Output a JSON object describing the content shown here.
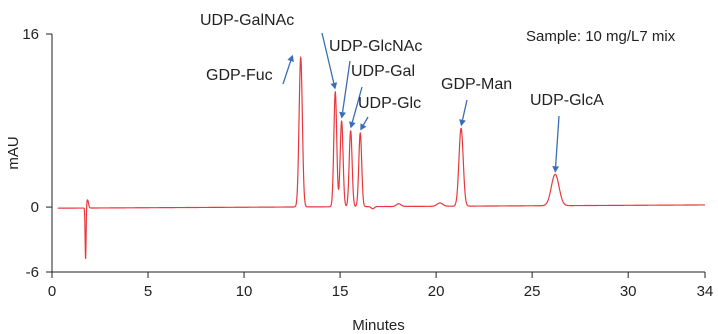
{
  "chart_data": {
    "type": "line",
    "xlabel": "Minutes",
    "ylabel": "mAU",
    "xlim": [
      0,
      34
    ],
    "ylim": [
      -6,
      16
    ],
    "xticks": [
      0,
      5,
      10,
      15,
      20,
      25,
      30,
      34
    ],
    "yticks": [
      -6,
      0,
      16
    ],
    "sample_label": "Sample: 10 mg/L7 mix",
    "line_color": "#e8383d",
    "arrow_color": "#3a6db5",
    "baseline": {
      "start": -0.1,
      "end": 0.2
    },
    "artifacts": [
      {
        "x": 1.75,
        "y": -4.8,
        "w": 0.025
      },
      {
        "x": 1.85,
        "y": 0.75,
        "w": 0.05
      }
    ],
    "minor_bumps": [
      {
        "x": 16.7,
        "y": -0.2,
        "w": 0.08
      },
      {
        "x": 18.05,
        "y": 0.25,
        "w": 0.12
      },
      {
        "x": 20.2,
        "y": 0.3,
        "w": 0.15
      }
    ],
    "peaks": [
      {
        "label": "GDP-Fuc",
        "x": 12.95,
        "y": 13.8,
        "w": 0.085
      },
      {
        "label": "UDP-GalNAc",
        "x": 14.75,
        "y": 10.6,
        "w": 0.075
      },
      {
        "label": "UDP-GlcNAc",
        "x": 15.08,
        "y": 7.9,
        "w": 0.075
      },
      {
        "label": "UDP-Gal",
        "x": 15.55,
        "y": 7.0,
        "w": 0.075
      },
      {
        "label": "UDP-Glc",
        "x": 16.05,
        "y": 6.8,
        "w": 0.075
      },
      {
        "label": "GDP-Man",
        "x": 21.3,
        "y": 7.2,
        "w": 0.11
      },
      {
        "label": "UDP-GlcA",
        "x": 26.2,
        "y": 2.9,
        "w": 0.2
      }
    ]
  }
}
